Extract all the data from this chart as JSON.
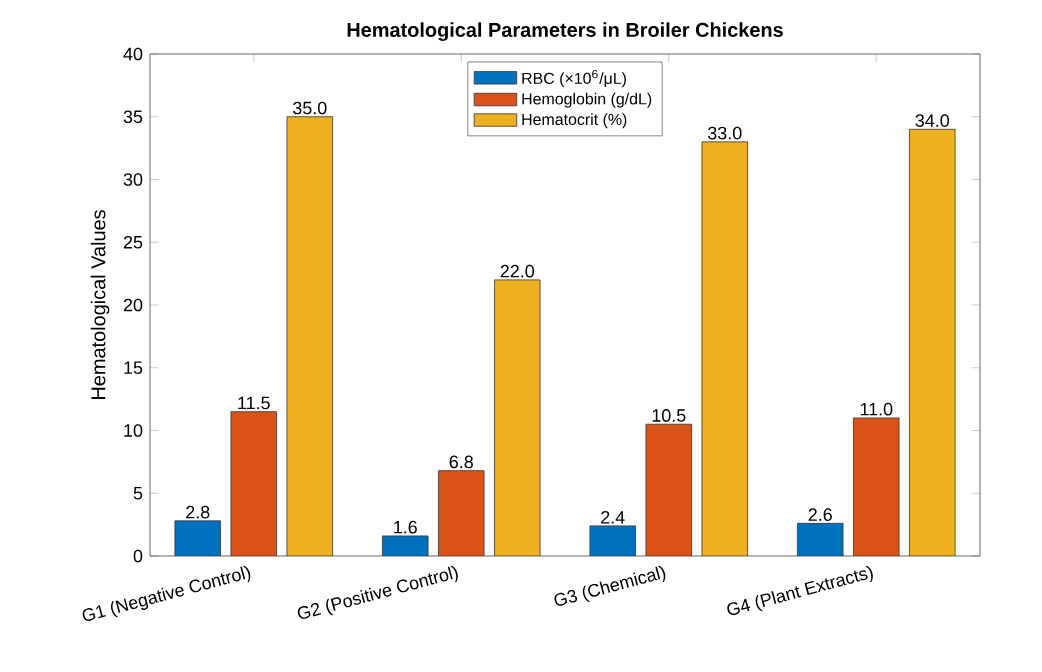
{
  "chart_data": {
    "type": "bar",
    "title": "Hematological Parameters in Broiler Chickens",
    "ylabel": "Hematological Values",
    "categories": [
      "G1 (Negative Control)",
      "G2 (Positive Control)",
      "G3 (Chemical)",
      "G4 (Plant Extracts)"
    ],
    "series": [
      {
        "name": "RBC (×10$^{6}$/μL)",
        "color": "#0072bd",
        "values": [
          2.8,
          1.6,
          2.4,
          2.6
        ],
        "value_labels": [
          "2.8",
          "1.6",
          "2.4",
          "2.6"
        ]
      },
      {
        "name": "Hemoglobin (g/dL)",
        "color": "#d95319",
        "values": [
          11.5,
          6.8,
          10.5,
          11.0
        ],
        "value_labels": [
          "11.5",
          "6.8",
          "10.5",
          "11.0"
        ]
      },
      {
        "name": "Hematocrit (%)",
        "color": "#edb120",
        "values": [
          35.0,
          22.0,
          33.0,
          34.0
        ],
        "value_labels": [
          "35.0",
          "22.0",
          "33.0",
          "34.0"
        ]
      }
    ],
    "ylim": [
      0,
      40
    ],
    "yticks": [
      0,
      5,
      10,
      15,
      20,
      25,
      30,
      35,
      40
    ],
    "grid": false,
    "legend": "top"
  }
}
